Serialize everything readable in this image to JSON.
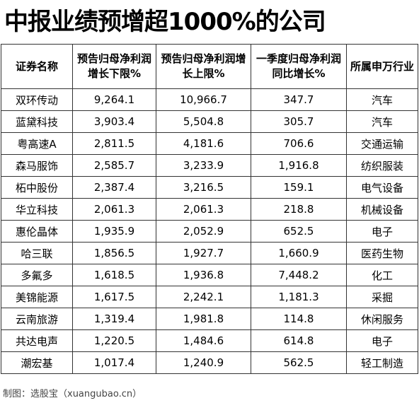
{
  "title": "中报业绩预增超1000%的公司",
  "table": {
    "headers": [
      "证券名称",
      "预告归母净利润增长下限%",
      "预告归母净利润增长上限%",
      "一季度归母净利润同比增长%",
      "所属申万行业"
    ],
    "rows": [
      [
        "双环传动",
        "9,264.1",
        "10,966.7",
        "347.7",
        "汽车"
      ],
      [
        "蓝黛科技",
        "3,903.4",
        "5,504.8",
        "305.7",
        "汽车"
      ],
      [
        "粤高速A",
        "2,811.5",
        "4,181.6",
        "706.6",
        "交通运输"
      ],
      [
        "森马服饰",
        "2,585.7",
        "3,233.9",
        "1,916.8",
        "纺织服装"
      ],
      [
        "柘中股份",
        "2,387.4",
        "3,216.5",
        "159.1",
        "电气设备"
      ],
      [
        "华立科技",
        "2,061.3",
        "2,061.3",
        "218.8",
        "机械设备"
      ],
      [
        "惠伦晶体",
        "1,935.9",
        "2,052.9",
        "652.5",
        "电子"
      ],
      [
        "哈三联",
        "1,856.5",
        "1,927.7",
        "1,660.9",
        "医药生物"
      ],
      [
        "多氟多",
        "1,618.5",
        "1,936.8",
        "7,448.2",
        "化工"
      ],
      [
        "美锦能源",
        "1,617.5",
        "2,242.1",
        "1,181.3",
        "采掘"
      ],
      [
        "云南旅游",
        "1,319.4",
        "1,981.8",
        "114.8",
        "休闲服务"
      ],
      [
        "共达电声",
        "1,220.5",
        "1,484.6",
        "614.8",
        "电子"
      ],
      [
        "潮宏基",
        "1,017.4",
        "1,240.9",
        "562.5",
        "轻工制造"
      ]
    ]
  },
  "footer": "制图：选股宝（xuangubao.cn）"
}
